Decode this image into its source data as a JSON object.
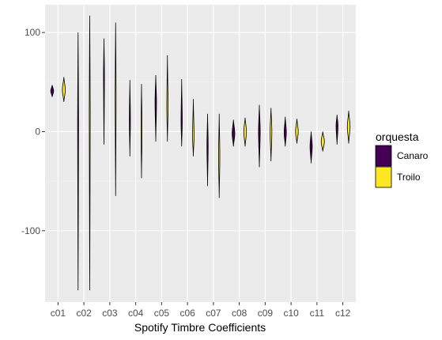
{
  "chart_data": {
    "type": "violin",
    "xlabel": "Spotify Timbre Coefficients",
    "ylabel": "",
    "ylim": [
      -172,
      128
    ],
    "yticks": [
      -100,
      0,
      100
    ],
    "categories": [
      "c01",
      "c02",
      "c03",
      "c04",
      "c05",
      "c06",
      "c07",
      "c08",
      "c09",
      "c10",
      "c11",
      "c12"
    ],
    "legend": {
      "title": "orquesta",
      "position": "right"
    },
    "grid": true,
    "series": [
      {
        "name": "Canaro",
        "color": "#440154",
        "violins": [
          {
            "min": 35,
            "max": 47,
            "peak": 41,
            "width": 0.24
          },
          {
            "min": -160,
            "max": 100,
            "peak": 10,
            "width": 0.02
          },
          {
            "min": -13,
            "max": 94,
            "peak": 55,
            "width": 0.03
          },
          {
            "min": -25,
            "max": 52,
            "peak": 12,
            "width": 0.09
          },
          {
            "min": -10,
            "max": 57,
            "peak": 30,
            "width": 0.12
          },
          {
            "min": -15,
            "max": 53,
            "peak": 10,
            "width": 0.1
          },
          {
            "min": -55,
            "max": 18,
            "peak": -14,
            "width": 0.1
          },
          {
            "min": -15,
            "max": 12,
            "peak": -2,
            "width": 0.22
          },
          {
            "min": -36,
            "max": 27,
            "peak": 0,
            "width": 0.14
          },
          {
            "min": -15,
            "max": 15,
            "peak": -1,
            "width": 0.18
          },
          {
            "min": -32,
            "max": 0,
            "peak": -15,
            "width": 0.18
          },
          {
            "min": -13,
            "max": 17,
            "peak": 6,
            "width": 0.16
          }
        ]
      },
      {
        "name": "Troilo",
        "color": "#fde725",
        "violins": [
          {
            "min": 30,
            "max": 55,
            "peak": 42,
            "width": 0.24
          },
          {
            "min": -160,
            "max": 117,
            "peak": 20,
            "width": 0.02
          },
          {
            "min": -65,
            "max": 110,
            "peak": 35,
            "width": 0.05
          },
          {
            "min": -47,
            "max": 48,
            "peak": 2,
            "width": 0.08
          },
          {
            "min": -10,
            "max": 77,
            "peak": 25,
            "width": 0.1
          },
          {
            "min": -25,
            "max": 33,
            "peak": -5,
            "width": 0.12
          },
          {
            "min": -67,
            "max": 18,
            "peak": -25,
            "width": 0.1
          },
          {
            "min": -15,
            "max": 14,
            "peak": 0,
            "width": 0.22
          },
          {
            "min": -30,
            "max": 24,
            "peak": 0,
            "width": 0.14
          },
          {
            "min": -12,
            "max": 13,
            "peak": 0,
            "width": 0.22
          },
          {
            "min": -20,
            "max": 0,
            "peak": -10,
            "width": 0.26
          },
          {
            "min": -12,
            "max": 21,
            "peak": 5,
            "width": 0.22
          }
        ]
      }
    ]
  }
}
